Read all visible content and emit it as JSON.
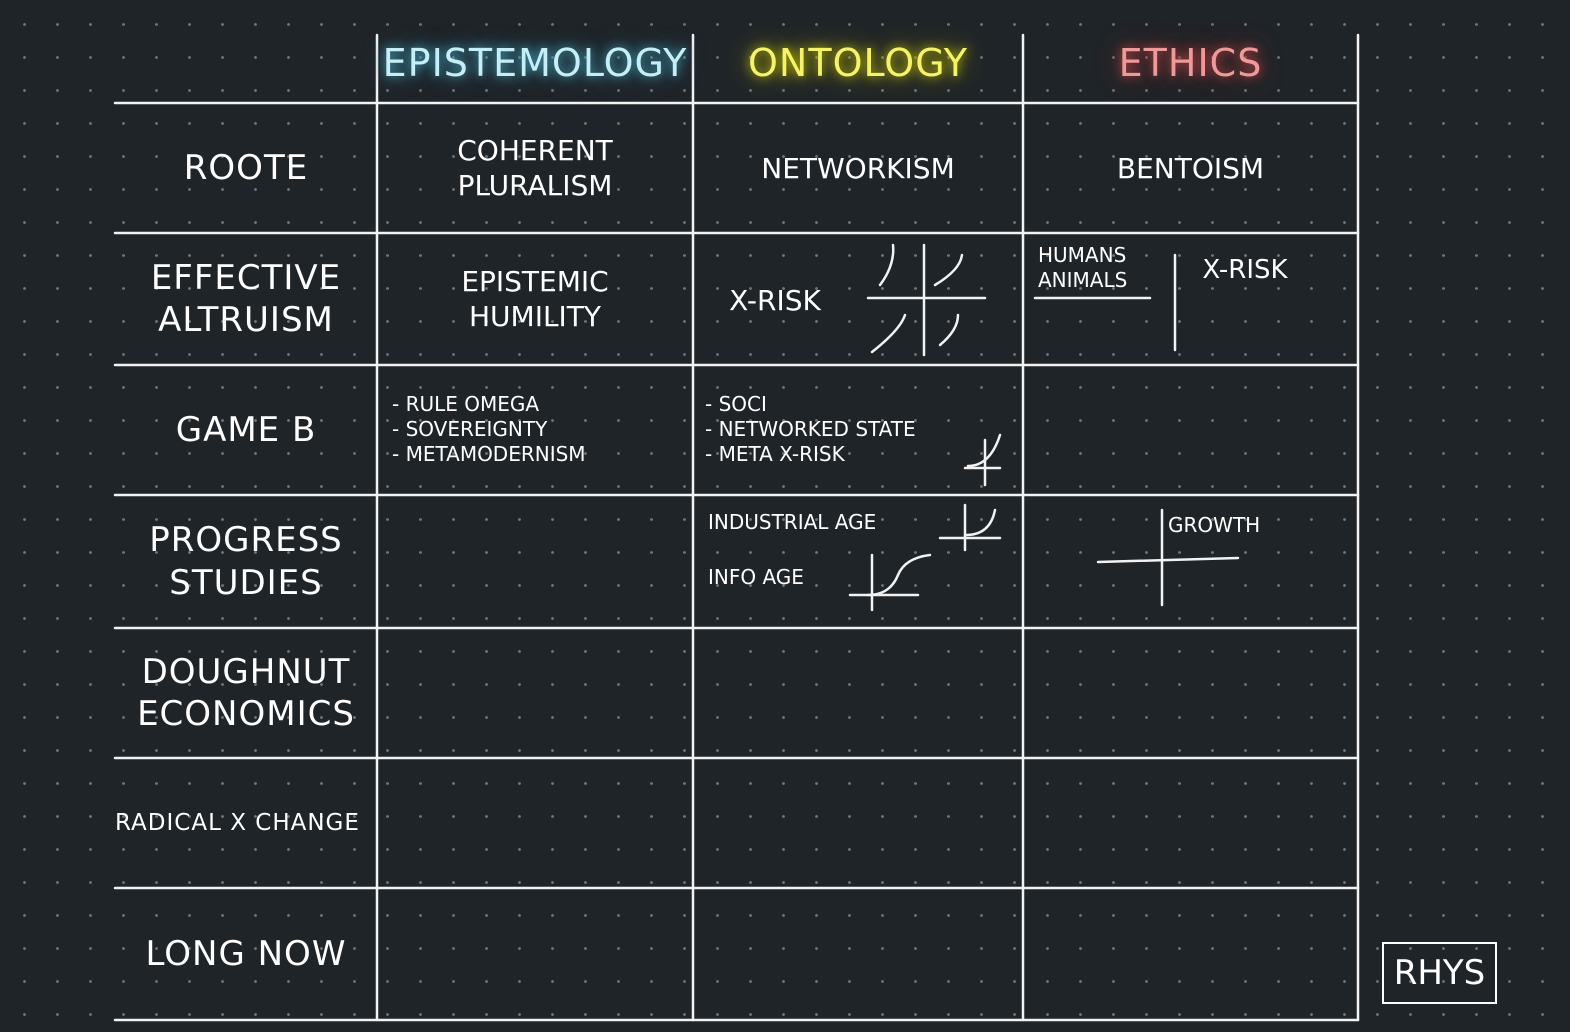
{
  "header": {
    "columns": [
      "EPISTEMOLOGY",
      "ONTOLOGY",
      "ETHICS"
    ]
  },
  "rows": [
    {
      "label": [
        "ROOTE"
      ],
      "cells": [
        [
          "COHERENT",
          "PLURALISM"
        ],
        [
          "NETWORKISM"
        ],
        [
          "BENTOISM"
        ]
      ]
    },
    {
      "label": [
        "EFFECTIVE",
        "ALTRUISM"
      ],
      "cells": [
        [
          "EPISTEMIC",
          "HUMILITY"
        ],
        [
          "X-RISK"
        ],
        [
          "HUMANS",
          "ANIMALS",
          "X-RISK"
        ]
      ]
    },
    {
      "label": [
        "GAME B"
      ],
      "cells": [
        [
          "- RULE OMEGA",
          "- SOVEREIGNTY",
          "- METAMODERNISM"
        ],
        [
          "- SOCI",
          "- NETWORKED STATE",
          "- META X-RISK"
        ],
        []
      ]
    },
    {
      "label": [
        "PROGRESS",
        "STUDIES"
      ],
      "cells": [
        [],
        [
          "INDUSTRIAL AGE",
          "INFO AGE"
        ],
        [
          "GROWTH"
        ]
      ]
    },
    {
      "label": [
        "DOUGHNUT",
        "ECONOMICS"
      ],
      "cells": [
        [],
        [],
        []
      ]
    },
    {
      "label": [
        "RADICAL X CHANGE"
      ],
      "cells": [
        [],
        [],
        []
      ]
    },
    {
      "label": [
        "LONG NOW"
      ],
      "cells": [
        [],
        [],
        []
      ]
    }
  ],
  "signature": "RHYS"
}
